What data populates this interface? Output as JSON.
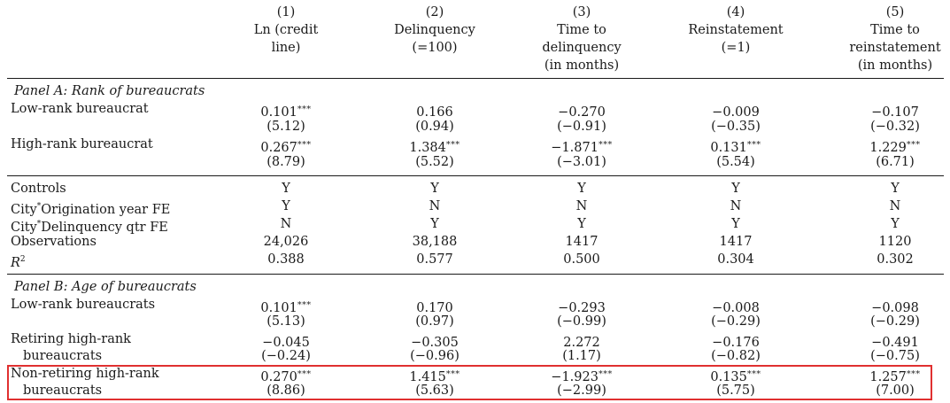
{
  "columns": [
    {
      "num": "(1)",
      "line1": "Ln (credit",
      "line2": "line)",
      "line3": ""
    },
    {
      "num": "(2)",
      "line1": "Delinquency",
      "line2": "(=100)",
      "line3": ""
    },
    {
      "num": "(3)",
      "line1": "Time to",
      "line2": "delinquency",
      "line3": "(in months)"
    },
    {
      "num": "(4)",
      "line1": "Reinstatement",
      "line2": "(=1)",
      "line3": ""
    },
    {
      "num": "(5)",
      "line1": "Time to",
      "line2": "reinstatement",
      "line3": "(in months)"
    }
  ],
  "panel_a": {
    "title": "Panel A: Rank of bureaucrats",
    "rows": [
      {
        "label": "Low-rank bureaucrat",
        "est": [
          "0.101",
          "0.166",
          "−0.270",
          "−0.009",
          "−0.107"
        ],
        "stars": [
          "***",
          "",
          "",
          "",
          ""
        ],
        "t": [
          "(5.12)",
          "(0.94)",
          "(−0.91)",
          "(−0.35)",
          "(−0.32)"
        ]
      },
      {
        "label": "High-rank bureaucrat",
        "est": [
          "0.267",
          "1.384",
          "−1.871",
          "0.131",
          "1.229"
        ],
        "stars": [
          "***",
          "***",
          "***",
          "***",
          "***"
        ],
        "t": [
          "(8.79)",
          "(5.52)",
          "(−3.01)",
          "(5.54)",
          "(6.71)"
        ]
      }
    ]
  },
  "middle": [
    {
      "label": "Controls",
      "vals": [
        "Y",
        "Y",
        "Y",
        "Y",
        "Y"
      ]
    },
    {
      "label_a": "City",
      "label_star": "*",
      "label_b": "Origination year FE",
      "vals": [
        "Y",
        "N",
        "N",
        "N",
        "N"
      ]
    },
    {
      "label_a": "City",
      "label_star": "*",
      "label_b": "Delinquency qtr FE",
      "vals": [
        "N",
        "Y",
        "Y",
        "Y",
        "Y"
      ]
    },
    {
      "label": "Observations",
      "vals": [
        "24,026",
        "38,188",
        "1417",
        "1417",
        "1120"
      ]
    },
    {
      "label_r": "R",
      "label_sup": "2",
      "vals": [
        "0.388",
        "0.577",
        "0.500",
        "0.304",
        "0.302"
      ]
    }
  ],
  "panel_b": {
    "title": "Panel B: Age of bureaucrats",
    "rows": [
      {
        "label1": "Low-rank bureaucrats",
        "label2": "",
        "est": [
          "0.101",
          "0.170",
          "−0.293",
          "−0.008",
          "−0.098"
        ],
        "stars": [
          "***",
          "",
          "",
          "",
          ""
        ],
        "t": [
          "(5.13)",
          "(0.97)",
          "(−0.99)",
          "(−0.29)",
          "(−0.29)"
        ]
      },
      {
        "label1": "Retiring high-rank",
        "label2": "bureaucrats",
        "est": [
          "−0.045",
          "−0.305",
          "2.272",
          "−0.176",
          "−0.491"
        ],
        "stars": [
          "",
          "",
          "",
          "",
          ""
        ],
        "t": [
          "(−0.24)",
          "(−0.96)",
          "(1.17)",
          "(−0.82)",
          "(−0.75)"
        ]
      },
      {
        "label1": "Non-retiring high-rank",
        "label2": "bureaucrats",
        "est": [
          "0.270",
          "1.415",
          "−1.923",
          "0.135",
          "1.257"
        ],
        "stars": [
          "***",
          "***",
          "***",
          "***",
          "***"
        ],
        "t": [
          "(8.86)",
          "(5.63)",
          "(−2.99)",
          "(5.75)",
          "(7.00)"
        ]
      }
    ]
  },
  "colors": {
    "highlight": "#e03030",
    "text": "#1a1a1a"
  }
}
